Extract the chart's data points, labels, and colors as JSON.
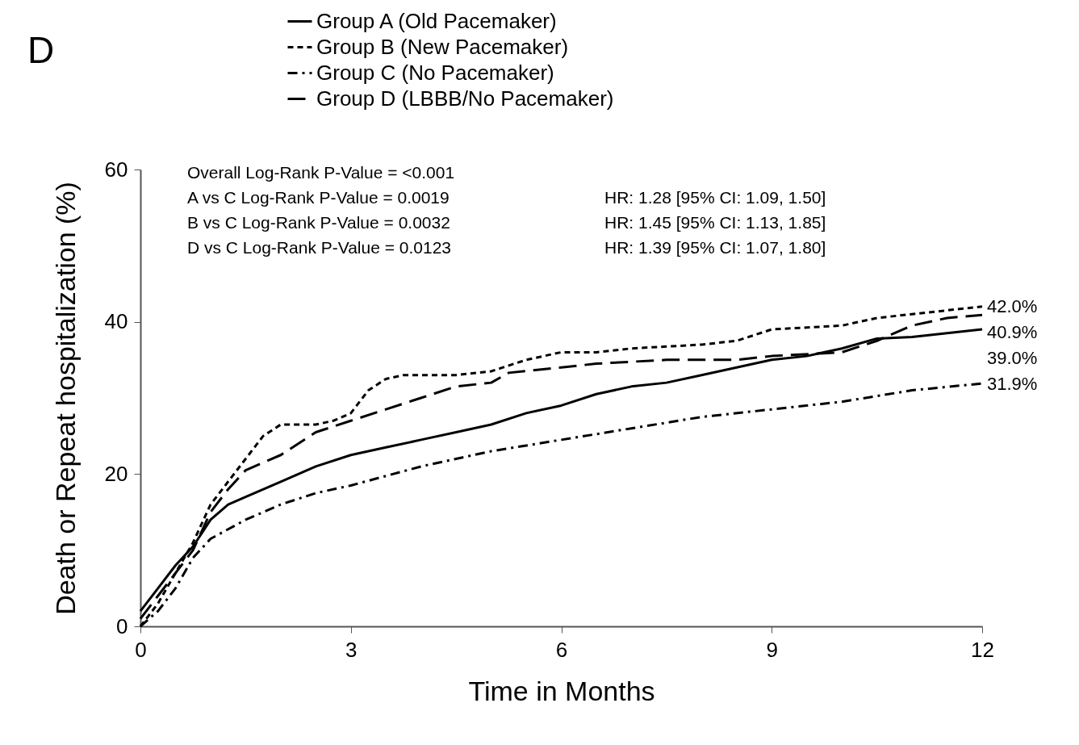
{
  "chart_data": {
    "type": "line",
    "title": "D",
    "xlabel": "Time in Months",
    "ylabel": "Death or Repeat hospitalization (%)",
    "xlim": [
      0,
      12
    ],
    "xticks": [
      0,
      3,
      6,
      9,
      12
    ],
    "ylim": [
      0,
      60
    ],
    "yticks": [
      0,
      20,
      40,
      60
    ],
    "grid": false,
    "legend": "top left",
    "series": [
      {
        "name": "Group A (Old Pacemaker)",
        "color": "#000000",
        "line_style": "solid",
        "x": [
          0,
          0.25,
          0.5,
          0.75,
          1.0,
          1.25,
          1.5,
          2.0,
          2.5,
          3.0,
          3.5,
          4.0,
          4.5,
          5.0,
          5.5,
          6.0,
          6.5,
          7.0,
          7.5,
          8.0,
          8.5,
          9.0,
          9.5,
          10.0,
          10.5,
          11.0,
          11.5,
          12.0
        ],
        "values": [
          2,
          5,
          8,
          10.5,
          14,
          16,
          17,
          19,
          21,
          22.5,
          23.5,
          24.5,
          25.5,
          26.5,
          28,
          29,
          30.5,
          31.5,
          32,
          33,
          34,
          35,
          35.5,
          36.5,
          37.8,
          38,
          38.5,
          39.0
        ],
        "value_labels": [
          null,
          null,
          null,
          null,
          null,
          null,
          null,
          null,
          null,
          null,
          null,
          null,
          null,
          null,
          null,
          null,
          null,
          null,
          null,
          null,
          null,
          null,
          null,
          null,
          null,
          null,
          null,
          "39.0%"
        ]
      },
      {
        "name": "Group B (New Pacemaker)",
        "color": "#000000",
        "line_style": "dashed",
        "x": [
          0,
          0.25,
          0.5,
          0.75,
          1.0,
          1.25,
          1.5,
          1.75,
          2.0,
          2.5,
          2.75,
          3.0,
          3.25,
          3.5,
          3.75,
          4.5,
          5.0,
          5.5,
          6.0,
          6.5,
          7.0,
          8.0,
          8.5,
          9.0,
          10.0,
          10.5,
          11.0,
          12.0
        ],
        "values": [
          0,
          3,
          7,
          11,
          16,
          19,
          22,
          25,
          26.5,
          26.5,
          27,
          28,
          31,
          32.5,
          33,
          33,
          33.5,
          35,
          36,
          36,
          36.5,
          37,
          37.5,
          39,
          39.5,
          40.5,
          41,
          42.0
        ],
        "value_labels": [
          null,
          null,
          null,
          null,
          null,
          null,
          null,
          null,
          null,
          null,
          null,
          null,
          null,
          null,
          null,
          null,
          null,
          null,
          null,
          null,
          null,
          null,
          null,
          null,
          null,
          null,
          null,
          "42.0%"
        ]
      },
      {
        "name": "Group C (No Pacemaker)",
        "color": "#000000",
        "line_style": "dashdot",
        "x": [
          0,
          0.25,
          0.5,
          0.75,
          1.0,
          1.5,
          2.0,
          2.5,
          3.0,
          4.0,
          5.0,
          6.0,
          7.0,
          8.0,
          9.0,
          10.0,
          11.0,
          12.0
        ],
        "values": [
          0,
          2,
          5,
          9,
          11.5,
          14,
          16,
          17.5,
          18.5,
          21,
          23,
          24.5,
          26,
          27.5,
          28.5,
          29.5,
          31,
          31.9
        ],
        "value_labels": [
          null,
          null,
          null,
          null,
          null,
          null,
          null,
          null,
          null,
          null,
          null,
          null,
          null,
          null,
          null,
          null,
          null,
          "31.9%"
        ]
      },
      {
        "name": "Group D (LBBB/No Pacemaker)",
        "color": "#000000",
        "line_style": "longdash",
        "x": [
          0,
          0.25,
          0.5,
          0.75,
          1.0,
          1.25,
          1.5,
          2.0,
          2.5,
          3.0,
          3.5,
          4.0,
          4.5,
          5.0,
          5.25,
          6.0,
          6.5,
          7.5,
          8.5,
          9.0,
          10.0,
          10.5,
          11.0,
          11.5,
          12.0
        ],
        "values": [
          1,
          4,
          7,
          10,
          15,
          18,
          20.5,
          22.5,
          25.5,
          27,
          28.5,
          30,
          31.5,
          32,
          33.3,
          34,
          34.5,
          35,
          35,
          35.5,
          36,
          37.5,
          39.5,
          40.5,
          40.9
        ],
        "value_labels": [
          null,
          null,
          null,
          null,
          null,
          null,
          null,
          null,
          null,
          null,
          null,
          null,
          null,
          null,
          null,
          null,
          null,
          null,
          null,
          null,
          null,
          null,
          null,
          null,
          "40.9%"
        ]
      }
    ],
    "annotations": [
      "Overall Log-Rank P-Value = <0.001",
      "A vs C Log-Rank P-Value = 0.0019",
      "B vs C Log-Rank P-Value = 0.0032",
      "D vs C Log-Rank P-Value = 0.0123",
      "HR: 1.28 [95% CI: 1.09, 1.50]",
      "HR: 1.45 [95% CI: 1.13, 1.85]",
      "HR: 1.39 [95% CI: 1.07, 1.80]"
    ]
  }
}
